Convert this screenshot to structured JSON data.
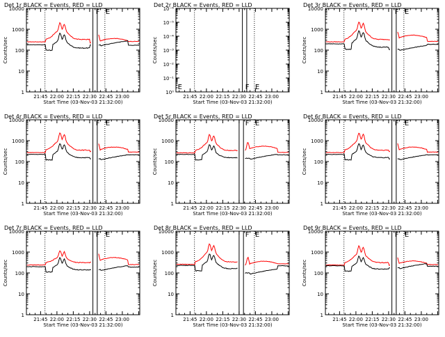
{
  "chart_data": [
    {
      "type": "line",
      "title": "Det 1r BLACK = Events, RED = LLD",
      "xlabel": "Start Time (03-Nov-03 21:32:00)",
      "ylabel": "Counts/sec",
      "yscale": "log",
      "ylim": [
        1,
        10000
      ],
      "ytick_labels": [
        "1",
        "10",
        "100",
        "1000",
        "10000"
      ],
      "xlim": [
        "21:32",
        "23:16"
      ],
      "xtick_labels": [
        "21:45",
        "22:00",
        "22:15",
        "22:30",
        "22:45",
        "23:00"
      ],
      "markers": [
        {
          "label": "F",
          "time": "22:35"
        },
        {
          "label": "E",
          "time": "22:44"
        }
      ],
      "dotted_lines": [
        "21:49",
        "22:44"
      ],
      "solid_lines": [
        "22:33",
        "22:37"
      ],
      "series": [
        {
          "color": "#ff0000",
          "peak": 2000,
          "base": 250,
          "tail": 280
        },
        {
          "color": "#000000",
          "peak": 700,
          "base": 180,
          "tail": 200
        }
      ]
    },
    {
      "type": "line",
      "title": "Det 2r BLACK = Events, RED = LLD",
      "xlabel": "Start Time (03-Nov-03 21:32:00)",
      "ylabel": "Counts/sec",
      "yscale": "log",
      "ylim": [
        1,
        1e-06
      ],
      "ytick_labels": [
        "10⁰",
        "10⁻¹",
        "10⁻²",
        "10⁻³",
        "10⁻⁴",
        "10⁻⁵",
        "10⁻⁶"
      ],
      "xlim": [
        "21:32",
        "23:16"
      ],
      "xtick_labels": [
        "21:45",
        "22:00",
        "22:15",
        "22:30",
        "22:45",
        "23:00"
      ],
      "markers": [
        {
          "label": "F",
          "time": "22:35"
        },
        {
          "label": "E",
          "time": "22:44"
        },
        {
          "label": "E",
          "time": "21:33"
        }
      ],
      "dotted_lines": [
        "21:49",
        "22:44"
      ],
      "solid_lines": [
        "22:33",
        "22:37"
      ],
      "series": []
    },
    {
      "type": "line",
      "title": "Det 3r BLACK = Events, RED = LLD",
      "xlabel": "Start Time (03-Nov-03 21:32:00)",
      "ylabel": "Counts/sec",
      "yscale": "log",
      "ylim": [
        1,
        10000
      ],
      "ytick_labels": [
        "1",
        "10",
        "100",
        "1000",
        "10000"
      ],
      "xlim": [
        "21:32",
        "23:16"
      ],
      "xtick_labels": [
        "21:45",
        "22:00",
        "22:15",
        "22:30",
        "22:45",
        "23:00"
      ],
      "markers": [
        {
          "label": "F",
          "time": "22:35"
        },
        {
          "label": "E",
          "time": "22:44"
        }
      ],
      "dotted_lines": [
        "21:49",
        "22:44"
      ],
      "solid_lines": [
        "22:33",
        "22:37"
      ],
      "series": [
        {
          "color": "#ff0000",
          "peak": 2200,
          "base": 250,
          "tail": 400
        },
        {
          "color": "#000000",
          "peak": 900,
          "base": 200,
          "tail": 120
        }
      ]
    },
    {
      "type": "line",
      "title": "Det 4r BLACK = Events, RED = LLD",
      "xlabel": "Start Time (03-Nov-03 21:32:00)",
      "ylabel": "Counts/sec",
      "yscale": "log",
      "ylim": [
        1,
        10000
      ],
      "ytick_labels": [
        "1",
        "10",
        "100",
        "1000",
        "10000"
      ],
      "xlim": [
        "21:32",
        "23:16"
      ],
      "xtick_labels": [
        "21:45",
        "22:00",
        "22:15",
        "22:30",
        "22:45",
        "23:00"
      ],
      "markers": [
        {
          "label": "F",
          "time": "22:35"
        },
        {
          "label": "E",
          "time": "22:44"
        }
      ],
      "dotted_lines": [
        "21:49",
        "22:44"
      ],
      "solid_lines": [
        "22:33",
        "22:37"
      ],
      "series": [
        {
          "color": "#ff0000",
          "peak": 2300,
          "base": 270,
          "tail": 380
        },
        {
          "color": "#000000",
          "peak": 800,
          "base": 220,
          "tail": 150
        }
      ]
    },
    {
      "type": "line",
      "title": "Det 5r BLACK = Events, RED = LLD",
      "xlabel": "Start Time (03-Nov-03 21:32:00)",
      "ylabel": "Counts/sec",
      "yscale": "log",
      "ylim": [
        1,
        10000
      ],
      "ytick_labels": [
        "1",
        "10",
        "100",
        "1000",
        "10000"
      ],
      "xlim": [
        "21:32",
        "23:16"
      ],
      "xtick_labels": [
        "21:45",
        "22:00",
        "22:15",
        "22:30",
        "22:45",
        "23:00"
      ],
      "markers": [
        {
          "label": "F",
          "time": "22:35"
        },
        {
          "label": "E",
          "time": "22:44"
        }
      ],
      "dotted_lines": [
        "21:49",
        "22:44"
      ],
      "solid_lines": [
        "22:30",
        "22:34"
      ],
      "series": [
        {
          "color": "#ff0000",
          "peak": 1900,
          "base": 260,
          "tail": 420
        },
        {
          "color": "#000000",
          "peak": 700,
          "base": 220,
          "tail": 160
        }
      ]
    },
    {
      "type": "line",
      "title": "Det 6r BLACK = Events, RED = LLD",
      "xlabel": "Start Time (03-Nov-03 21:32:00)",
      "ylabel": "Counts/sec",
      "yscale": "log",
      "ylim": [
        1,
        10000
      ],
      "ytick_labels": [
        "1",
        "10",
        "100",
        "1000",
        "10000"
      ],
      "xlim": [
        "21:32",
        "23:16"
      ],
      "xtick_labels": [
        "21:45",
        "22:00",
        "22:15",
        "22:30",
        "22:45",
        "23:00"
      ],
      "markers": [
        {
          "label": "F",
          "time": "22:35"
        },
        {
          "label": "E",
          "time": "22:44"
        }
      ],
      "dotted_lines": [
        "21:49",
        "22:44"
      ],
      "solid_lines": [
        "22:33",
        "22:37"
      ],
      "series": [
        {
          "color": "#ff0000",
          "peak": 2300,
          "base": 270,
          "tail": 380
        },
        {
          "color": "#000000",
          "peak": 800,
          "base": 220,
          "tail": 150
        }
      ]
    },
    {
      "type": "line",
      "title": "Det 7r BLACK = Events, RED = LLD",
      "xlabel": "Start Time (03-Nov-03 21:32:00)",
      "ylabel": "Counts/sec",
      "yscale": "log",
      "ylim": [
        1,
        10000
      ],
      "ytick_labels": [
        "1",
        "10",
        "100",
        "1000",
        "10000"
      ],
      "xlim": [
        "21:32",
        "23:16"
      ],
      "xtick_labels": [
        "21:45",
        "22:00",
        "22:15",
        "22:30",
        "22:45",
        "23:00"
      ],
      "markers": [
        {
          "label": "F",
          "time": "22:35"
        },
        {
          "label": "E",
          "time": "22:44"
        }
      ],
      "dotted_lines": [
        "21:49",
        "22:44"
      ],
      "solid_lines": [
        "22:33",
        "22:37"
      ],
      "series": [
        {
          "color": "#ff0000",
          "peak": 1100,
          "base": 240,
          "tail": 420
        },
        {
          "color": "#000000",
          "peak": 600,
          "base": 200,
          "tail": 160
        }
      ]
    },
    {
      "type": "line",
      "title": "Det 8r BLACK = Events, RED = LLD",
      "xlabel": "Start Time (03-Nov-03 21:32:00)",
      "ylabel": "Counts/sec",
      "yscale": "log",
      "ylim": [
        1,
        10000
      ],
      "ytick_labels": [
        "1",
        "10",
        "100",
        "1000",
        "10000"
      ],
      "xlim": [
        "21:32",
        "23:16"
      ],
      "xtick_labels": [
        "21:45",
        "22:00",
        "22:15",
        "22:30",
        "22:45",
        "23:00"
      ],
      "markers": [
        {
          "label": "F",
          "time": "22:35"
        },
        {
          "label": "E",
          "time": "22:44"
        }
      ],
      "dotted_lines": [
        "21:49",
        "22:44"
      ],
      "solid_lines": [
        "22:30",
        "22:34"
      ],
      "series": [
        {
          "color": "#ff0000",
          "peak": 2400,
          "base": 260,
          "tail": 280
        },
        {
          "color": "#000000",
          "peak": 900,
          "base": 230,
          "tail": 110
        }
      ]
    },
    {
      "type": "line",
      "title": "Det 9r BLACK = Events, RED = LLD",
      "xlabel": "Start Time (03-Nov-03 21:32:00)",
      "ylabel": "Counts/sec",
      "yscale": "log",
      "ylim": [
        1,
        10000
      ],
      "ytick_labels": [
        "1",
        "10",
        "100",
        "1000",
        "10000"
      ],
      "xlim": [
        "21:32",
        "23:16"
      ],
      "xtick_labels": [
        "21:45",
        "22:00",
        "22:15",
        "22:30",
        "22:45",
        "23:00"
      ],
      "markers": [
        {
          "label": "F",
          "time": "22:35"
        },
        {
          "label": "E",
          "time": "22:44"
        }
      ],
      "dotted_lines": [
        "21:49",
        "22:44"
      ],
      "solid_lines": [
        "22:33",
        "22:37"
      ],
      "series": [
        {
          "color": "#ff0000",
          "peak": 1900,
          "base": 240,
          "tail": 290
        },
        {
          "color": "#000000",
          "peak": 700,
          "base": 220,
          "tail": 200
        }
      ]
    }
  ]
}
